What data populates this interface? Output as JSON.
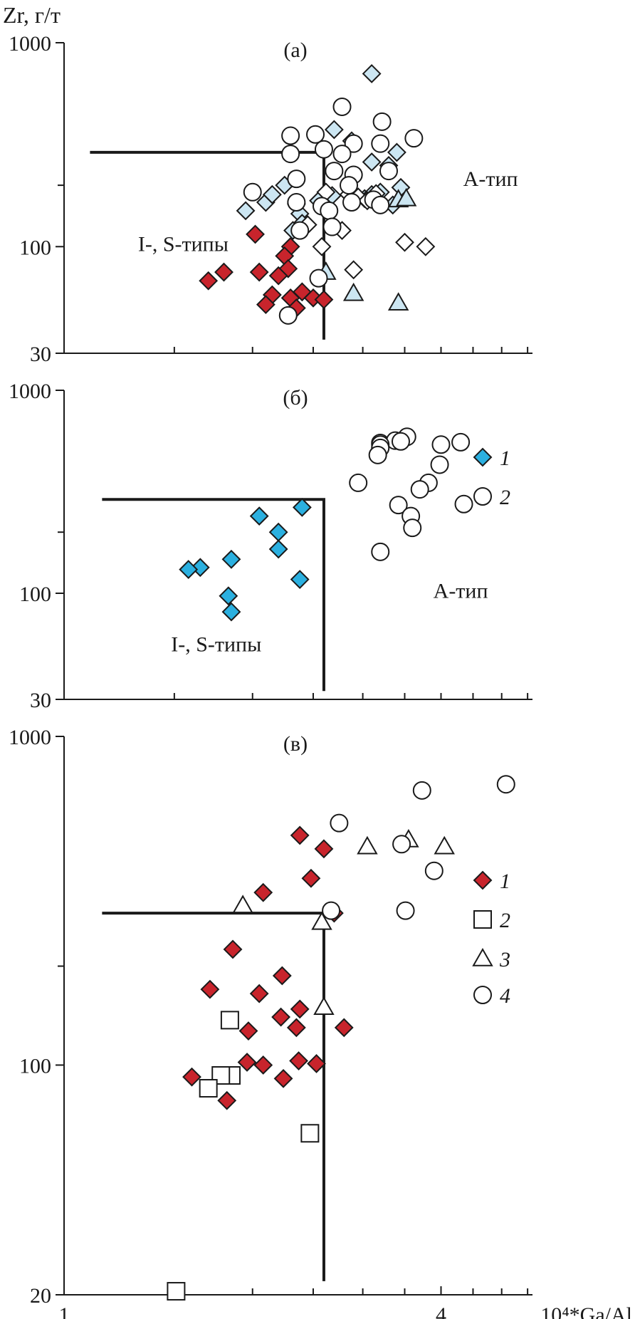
{
  "chart_data": [
    {
      "type": "scatter",
      "panel_label": "(a)",
      "ylabel": "Zr, г/т",
      "xlabel": "",
      "xscale": "log",
      "yscale": "log",
      "xlim": [
        1,
        5.6
      ],
      "ylim": [
        30,
        1000
      ],
      "y_ticks": [
        1000,
        100,
        30
      ],
      "x_ticks": [],
      "x_minor_ticks": [
        1.5,
        2,
        2.5,
        3,
        3.5,
        4,
        4.5,
        5,
        5.5
      ],
      "y_minor_ticks": [
        200
      ],
      "discrimination_lines": [
        [
          [
            1.1,
            290
          ],
          [
            2.6,
            290
          ],
          [
            2.6,
            35
          ]
        ]
      ],
      "region_labels": [
        {
          "text": "I-, S-типы",
          "x": 1.55,
          "y": 103
        },
        {
          "text": "A-тип",
          "x": 4.8,
          "y": 215
        }
      ],
      "series": [
        {
          "marker": "diamond",
          "color": "#c8242c",
          "points": [
            [
              2.02,
              115
            ],
            [
              2.3,
              100
            ],
            [
              2.25,
              90
            ],
            [
              1.8,
              75
            ],
            [
              1.7,
              68
            ],
            [
              2.05,
              75
            ],
            [
              2.28,
              78
            ],
            [
              2.2,
              72
            ],
            [
              2.15,
              58
            ],
            [
              2.3,
              56
            ],
            [
              2.4,
              60
            ],
            [
              2.5,
              56
            ],
            [
              2.6,
              55
            ],
            [
              2.1,
              52
            ],
            [
              2.35,
              50
            ]
          ]
        },
        {
          "marker": "diamond",
          "color": "#cce6f2",
          "points": [
            [
              3.1,
              705
            ],
            [
              2.88,
              330
            ],
            [
              3.4,
              290
            ],
            [
              3.1,
              260
            ],
            [
              3.3,
              250
            ],
            [
              3.45,
              195
            ],
            [
              3.35,
              160
            ],
            [
              2.55,
              168
            ],
            [
              2.35,
              162
            ],
            [
              2.1,
              165
            ],
            [
              2.38,
              145
            ],
            [
              1.95,
              150
            ],
            [
              2.4,
              130
            ],
            [
              2.32,
              120
            ],
            [
              2.25,
              200
            ],
            [
              2.15,
              180
            ],
            [
              2.68,
              178
            ],
            [
              2.88,
              175
            ],
            [
              3.02,
              172
            ],
            [
              3.1,
              180
            ],
            [
              3.2,
              185
            ],
            [
              2.7,
              375
            ]
          ]
        },
        {
          "marker": "diamond",
          "color": "#ffffff",
          "points": [
            [
              2.62,
              185
            ],
            [
              2.85,
              180
            ],
            [
              2.95,
              175
            ],
            [
              3.15,
              182
            ],
            [
              3.05,
              168
            ],
            [
              2.45,
              128
            ],
            [
              2.78,
              120
            ],
            [
              2.58,
              100
            ],
            [
              2.9,
              77
            ],
            [
              3.5,
              105
            ],
            [
              3.78,
              100
            ]
          ]
        },
        {
          "marker": "triangle",
          "color": "#cce6f2",
          "points": [
            [
              3.42,
              170
            ],
            [
              3.52,
              172
            ],
            [
              2.62,
              75
            ],
            [
              2.9,
              59
            ],
            [
              3.42,
              53
            ]
          ]
        },
        {
          "marker": "circle",
          "color": "#ffffff",
          "points": [
            [
              2.78,
              485
            ],
            [
              3.22,
              410
            ],
            [
              3.62,
              340
            ],
            [
              2.3,
              350
            ],
            [
              2.52,
              355
            ],
            [
              2.9,
              320
            ],
            [
              3.2,
              320
            ],
            [
              2.6,
              300
            ],
            [
              2.3,
              285
            ],
            [
              2.78,
              285
            ],
            [
              2.7,
              235
            ],
            [
              2.35,
              215
            ],
            [
              2.9,
              225
            ],
            [
              3.3,
              235
            ],
            [
              2.85,
              200
            ],
            [
              2.0,
              185
            ],
            [
              2.35,
              165
            ],
            [
              2.58,
              158
            ],
            [
              2.65,
              150
            ],
            [
              2.88,
              165
            ],
            [
              3.12,
              170
            ],
            [
              3.2,
              160
            ],
            [
              2.38,
              120
            ],
            [
              2.68,
              125
            ],
            [
              2.55,
              70
            ],
            [
              2.28,
              46
            ]
          ]
        }
      ]
    },
    {
      "type": "scatter",
      "panel_label": "(б)",
      "xlabel": "",
      "ylabel": "",
      "xscale": "log",
      "yscale": "log",
      "xlim": [
        1,
        5.6
      ],
      "ylim": [
        30,
        1000
      ],
      "y_ticks": [
        1000,
        100,
        30
      ],
      "x_ticks": [],
      "x_minor_ticks": [
        1.5,
        2,
        2.5,
        3,
        3.5,
        4,
        4.5,
        5,
        5.5
      ],
      "y_minor_ticks": [
        200
      ],
      "discrimination_lines": [
        [
          [
            1.15,
            290
          ],
          [
            2.6,
            290
          ],
          [
            2.6,
            33
          ]
        ]
      ],
      "region_labels": [
        {
          "text": "I-, S-типы",
          "x": 1.75,
          "y": 56
        },
        {
          "text": "A-тип",
          "x": 4.3,
          "y": 103
        }
      ],
      "legend": [
        {
          "label": "1",
          "marker": "diamond",
          "color": "#2bb0e0"
        },
        {
          "label": "2",
          "marker": "circle",
          "color": "#ffffff"
        }
      ],
      "series": [
        {
          "name": "1",
          "marker": "diamond",
          "color": "#2bb0e0",
          "points": [
            [
              2.4,
              265
            ],
            [
              2.05,
              240
            ],
            [
              2.2,
              200
            ],
            [
              2.2,
              165
            ],
            [
              1.85,
              147
            ],
            [
              1.65,
              134
            ],
            [
              1.58,
              131
            ],
            [
              2.38,
              117
            ],
            [
              1.83,
              97
            ],
            [
              1.85,
              81
            ]
          ]
        },
        {
          "name": "2",
          "marker": "circle",
          "color": "#ffffff",
          "points": [
            [
              3.53,
              590
            ],
            [
              3.2,
              550
            ],
            [
              3.38,
              565
            ],
            [
              3.45,
              560
            ],
            [
              3.2,
              540
            ],
            [
              3.2,
              520
            ],
            [
              4.0,
              540
            ],
            [
              4.3,
              555
            ],
            [
              3.17,
              480
            ],
            [
              3.98,
              430
            ],
            [
              3.82,
              350
            ],
            [
              2.95,
              350
            ],
            [
              3.7,
              325
            ],
            [
              4.35,
              275
            ],
            [
              3.42,
              272
            ],
            [
              3.58,
              240
            ],
            [
              3.6,
              210
            ],
            [
              3.2,
              160
            ]
          ]
        }
      ]
    },
    {
      "type": "scatter",
      "panel_label": "(в)",
      "xlabel": "10⁴*Ga/Al",
      "ylabel": "",
      "xscale": "log",
      "yscale": "log",
      "xlim": [
        1,
        5.6
      ],
      "ylim": [
        20,
        1000
      ],
      "y_ticks": [
        1000,
        100,
        20
      ],
      "x_ticks": [
        1,
        4
      ],
      "x_minor_ticks": [
        1.5,
        2,
        2.5,
        3,
        3.5,
        4.5,
        5,
        5.5
      ],
      "y_minor_ticks": [
        200
      ],
      "discrimination_lines": [
        [
          [
            1.15,
            290
          ],
          [
            2.6,
            290
          ],
          [
            2.6,
            22
          ]
        ]
      ],
      "region_labels": [],
      "legend": [
        {
          "label": "1",
          "marker": "diamond",
          "color": "#c8242c"
        },
        {
          "label": "2",
          "marker": "square",
          "color": "#ffffff"
        },
        {
          "label": "3",
          "marker": "triangle",
          "color": "#ffffff"
        },
        {
          "label": "4",
          "marker": "circle",
          "color": "#ffffff"
        }
      ],
      "series": [
        {
          "name": "1",
          "marker": "diamond",
          "color": "#c8242c",
          "points": [
            [
              2.38,
              500
            ],
            [
              2.6,
              455
            ],
            [
              2.48,
              370
            ],
            [
              2.7,
              290
            ],
            [
              2.08,
              335
            ],
            [
              1.86,
              225
            ],
            [
              2.23,
              187
            ],
            [
              1.71,
              170
            ],
            [
              2.05,
              165
            ],
            [
              2.38,
              148
            ],
            [
              2.22,
              140
            ],
            [
              2.35,
              130
            ],
            [
              1.97,
              127
            ],
            [
              2.8,
              130
            ],
            [
              2.08,
              100
            ],
            [
              1.96,
              102
            ],
            [
              2.37,
              103
            ],
            [
              2.53,
              101
            ],
            [
              2.24,
              91
            ],
            [
              1.6,
              92
            ],
            [
              1.82,
              78
            ]
          ]
        },
        {
          "name": "2",
          "marker": "square",
          "color": "#ffffff",
          "points": [
            [
              1.84,
              137
            ],
            [
              1.85,
              93
            ],
            [
              1.78,
              93
            ],
            [
              1.7,
              85
            ],
            [
              2.47,
              62
            ],
            [
              1.51,
              20.5
            ]
          ]
        },
        {
          "name": "3",
          "marker": "triangle",
          "color": "#ffffff",
          "points": [
            [
              3.05,
              462
            ],
            [
              3.55,
              485
            ],
            [
              4.05,
              462
            ],
            [
              1.93,
              306
            ],
            [
              2.58,
              272
            ],
            [
              2.6,
              150
            ]
          ]
        },
        {
          "name": "4",
          "marker": "circle",
          "color": "#ffffff",
          "points": [
            [
              5.08,
              715
            ],
            [
              3.73,
              685
            ],
            [
              2.75,
              545
            ],
            [
              3.46,
              470
            ],
            [
              3.9,
              390
            ],
            [
              3.51,
              295
            ],
            [
              2.67,
              295
            ]
          ]
        }
      ]
    }
  ]
}
